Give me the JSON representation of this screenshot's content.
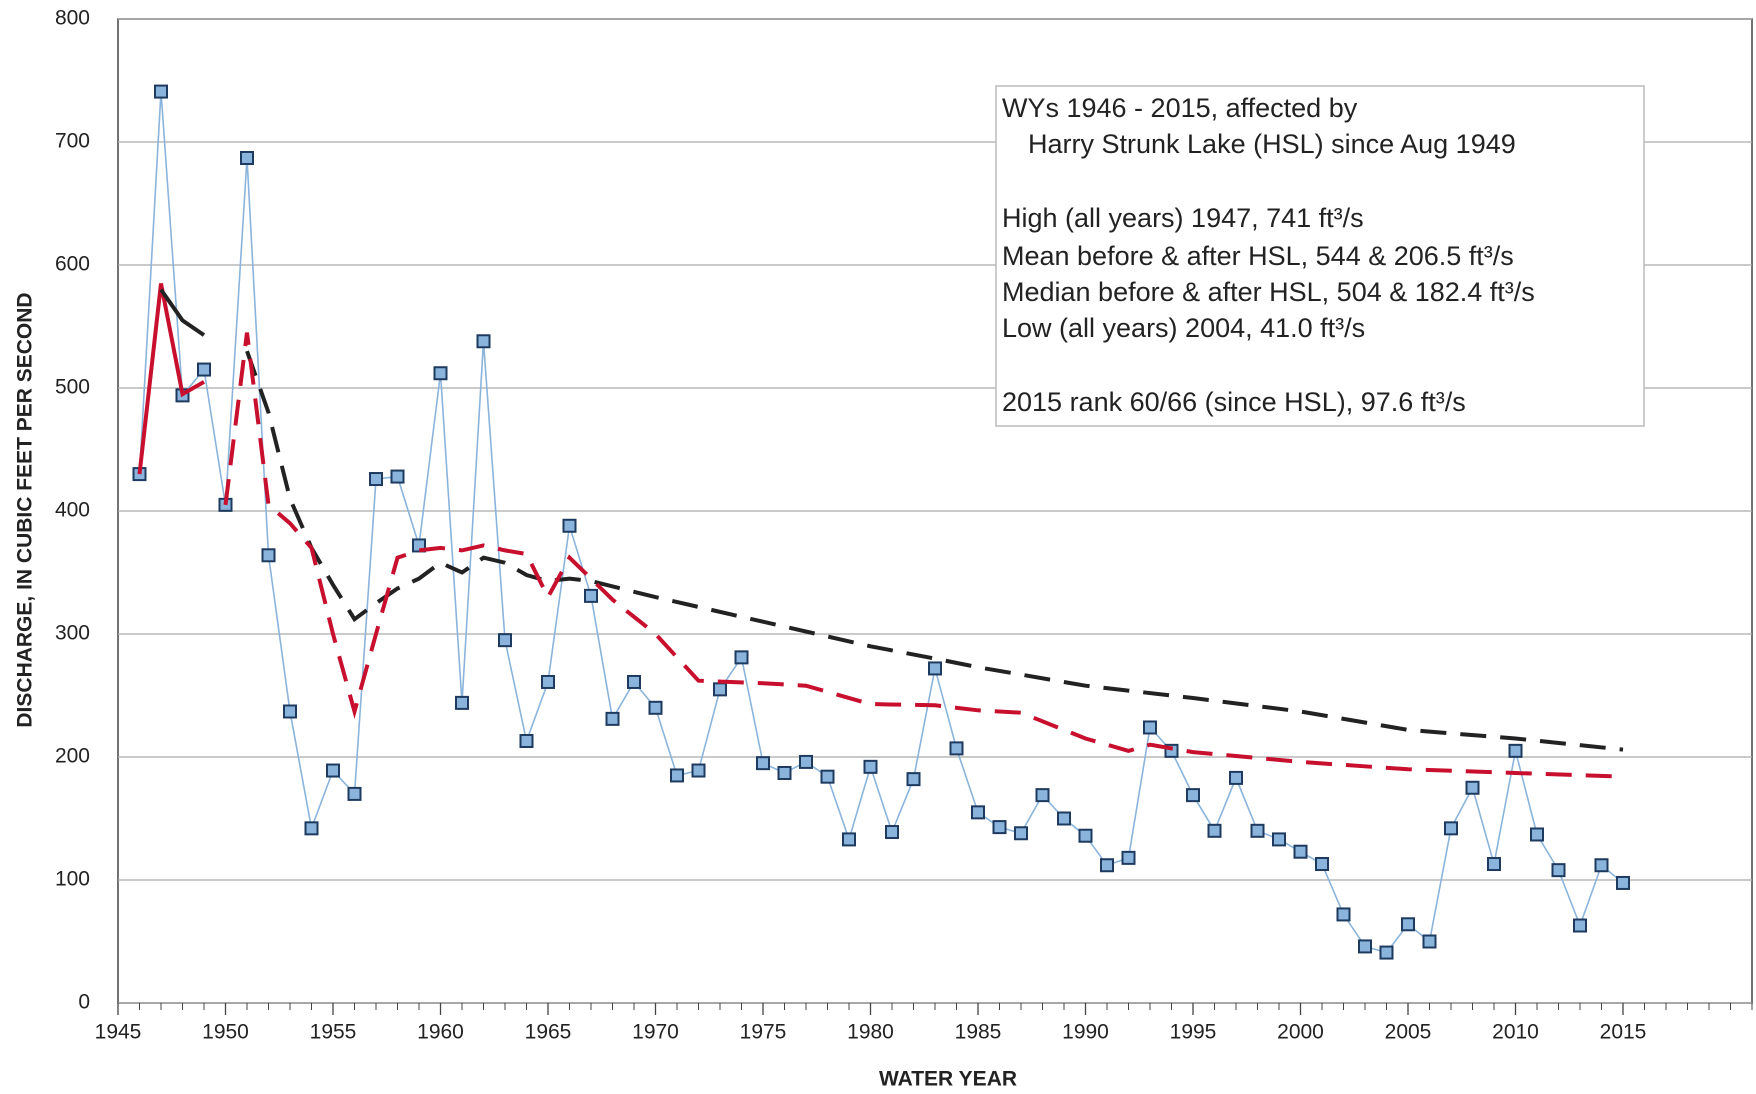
{
  "chart_data": {
    "type": "line",
    "x_label": "WATER YEAR",
    "y_label": "DISCHARGE, IN CUBIC FEET PER SECOND",
    "xlim": [
      1945,
      2021
    ],
    "ylim": [
      0,
      800
    ],
    "xticks": [
      1945,
      1950,
      1955,
      1960,
      1965,
      1970,
      1975,
      1980,
      1985,
      1990,
      1995,
      2000,
      2005,
      2010,
      2015
    ],
    "yticks": [
      0,
      100,
      200,
      300,
      400,
      500,
      600,
      700,
      800
    ],
    "grid": true,
    "annotation": [
      "WYs 1946 - 2015, affected by",
      "Harry Strunk Lake (HSL) since Aug 1949",
      "High (all years) 1947, 741 ft³/s",
      "Mean before & after HSL, 544 & 206.5 ft³/s",
      "Median before & after HSL, 504 & 182.4 ft³/s",
      "Low (all years) 2004, 41.0 ft³/s",
      "2015 rank 60/66 (since HSL), 97.6 ft³/s"
    ],
    "series": [
      {
        "color": "#8ab4dc",
        "style": "markers",
        "x": [
          1946,
          1947,
          1948,
          1949,
          1950,
          1951,
          1952,
          1953,
          1954,
          1955,
          1956,
          1957,
          1958,
          1959,
          1960,
          1961,
          1962,
          1963,
          1964,
          1965,
          1966,
          1967,
          1968,
          1969,
          1970,
          1971,
          1972,
          1973,
          1974,
          1975,
          1976,
          1977,
          1978,
          1979,
          1980,
          1981,
          1982,
          1983,
          1984,
          1985,
          1986,
          1987,
          1988,
          1989,
          1990,
          1991,
          1992,
          1993,
          1994,
          1995,
          1996,
          1997,
          1998,
          1999,
          2000,
          2001,
          2002,
          2003,
          2004,
          2005,
          2006,
          2007,
          2008,
          2009,
          2010,
          2011,
          2012,
          2013,
          2014,
          2015
        ],
        "values": [
          430,
          741,
          494,
          515,
          405,
          687,
          364,
          237,
          142,
          189,
          170,
          426,
          428,
          372,
          512,
          244,
          538,
          295,
          213,
          261,
          388,
          331,
          231,
          261,
          240,
          185,
          189,
          255,
          281,
          195,
          187,
          196,
          184,
          133,
          192,
          139,
          182,
          272,
          207,
          155,
          143,
          138,
          169,
          150,
          136,
          112,
          118,
          224,
          205,
          169,
          140,
          183,
          140,
          133,
          123,
          113,
          72,
          46,
          41,
          64,
          50,
          142,
          175,
          113,
          205,
          137,
          108,
          63,
          112,
          97.6
        ]
      },
      {
        "color": "#c8102e",
        "style": "solid",
        "x": [
          1946,
          1947,
          1948,
          1949
        ],
        "values": [
          430,
          585,
          495,
          505
        ]
      },
      {
        "color": "#222222",
        "style": "solid",
        "x": [
          1947,
          1948,
          1949
        ],
        "values": [
          580,
          555,
          543
        ]
      },
      {
        "color": "#222222",
        "style": "dashed",
        "x": [
          1951,
          1952,
          1953,
          1954,
          1955,
          1956,
          1957,
          1958,
          1959,
          1960,
          1961,
          1962,
          1963,
          1964,
          1965,
          1966,
          1967,
          1970,
          1975,
          1980,
          1983,
          1985,
          1990,
          1995,
          2000,
          2005,
          2010,
          2015
        ],
        "values": [
          530,
          480,
          410,
          370,
          340,
          312,
          325,
          337,
          345,
          358,
          350,
          362,
          358,
          348,
          343,
          345,
          343,
          330,
          310,
          290,
          280,
          273,
          258,
          248,
          237,
          222,
          215,
          206
        ]
      },
      {
        "color": "#c8102e",
        "style": "dashed",
        "x": [
          1950,
          1951,
          1952,
          1953,
          1954,
          1955,
          1956,
          1957,
          1958,
          1959,
          1960,
          1961,
          1962,
          1963,
          1964,
          1965,
          1966,
          1967,
          1968,
          1970,
          1972,
          1975,
          1977,
          1980,
          1983,
          1985,
          1987,
          1990,
          1992,
          1993,
          1995,
          2000,
          2005,
          2010,
          2015
        ],
        "values": [
          405,
          545,
          405,
          390,
          370,
          300,
          237,
          300,
          362,
          368,
          370,
          368,
          372,
          368,
          365,
          330,
          362,
          345,
          328,
          300,
          262,
          260,
          258,
          243,
          242,
          238,
          236,
          215,
          205,
          210,
          204,
          196,
          190,
          187,
          184
        ]
      }
    ]
  }
}
